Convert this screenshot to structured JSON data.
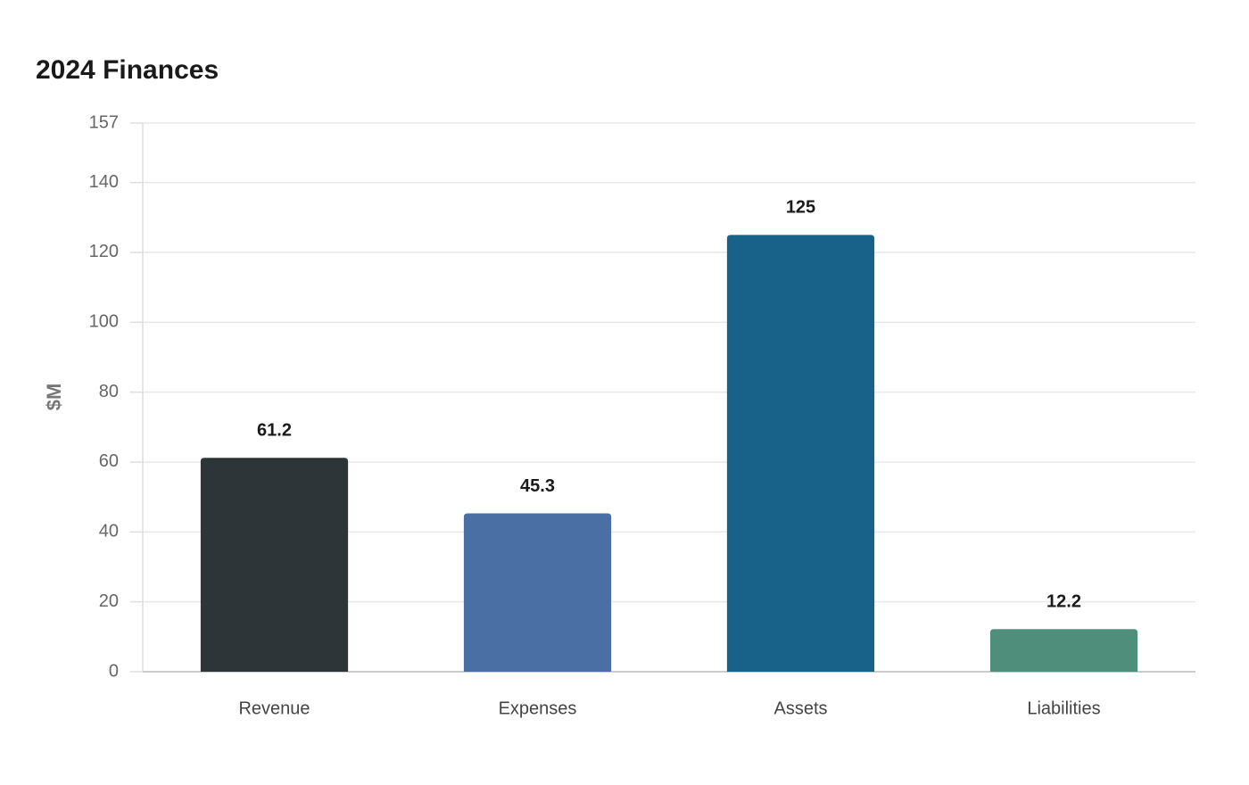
{
  "chart_data": {
    "type": "bar",
    "title": "2024 Finances",
    "y_label": "$M",
    "categories": [
      "Revenue",
      "Expenses",
      "Assets",
      "Liabilities"
    ],
    "values": [
      61.2,
      45.3,
      125,
      12.2
    ],
    "colors": [
      "#2e3538",
      "#4a6fa5",
      "#186289",
      "#4e8e7a"
    ],
    "ylim": [
      0,
      157
    ],
    "yticks": [
      0,
      20,
      40,
      60,
      80,
      100,
      120,
      140,
      157
    ],
    "grid": true
  }
}
